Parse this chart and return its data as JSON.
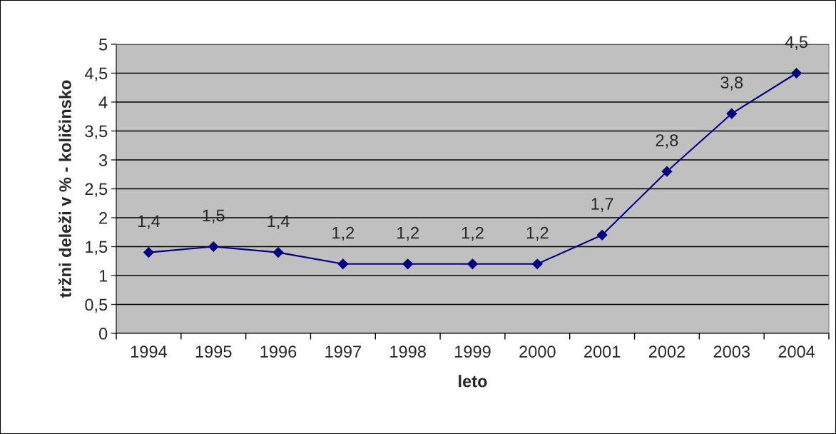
{
  "chart_data": {
    "type": "line",
    "xlabel": "leto",
    "ylabel": "tržni deleži v % - količinsko",
    "categories": [
      "1994",
      "1995",
      "1996",
      "1997",
      "1998",
      "1999",
      "2000",
      "2001",
      "2002",
      "2003",
      "2004"
    ],
    "series": [
      {
        "color": "#000080",
        "values": [
          1.4,
          1.5,
          1.4,
          1.2,
          1.2,
          1.2,
          1.2,
          1.7,
          2.8,
          3.8,
          4.5
        ],
        "value_labels": [
          "1,4",
          "1,5",
          "1,4",
          "1,2",
          "1,2",
          "1,2",
          "1,2",
          "1,7",
          "2,8",
          "3,8",
          "4,5"
        ]
      }
    ],
    "ylim": [
      0,
      5
    ],
    "yticks": [
      0,
      {
        "value": 0.5,
        "label": "0,5"
      },
      1,
      {
        "value": 1.5,
        "label": "1,5"
      },
      2,
      {
        "value": 2.5,
        "label": "2,5"
      },
      3,
      {
        "value": 3.5,
        "label": "3,5"
      },
      4,
      {
        "value": 4.5,
        "label": "4,5"
      },
      5
    ],
    "grid": "y",
    "marker": "diamond",
    "line_style": "solid",
    "legend": false
  }
}
